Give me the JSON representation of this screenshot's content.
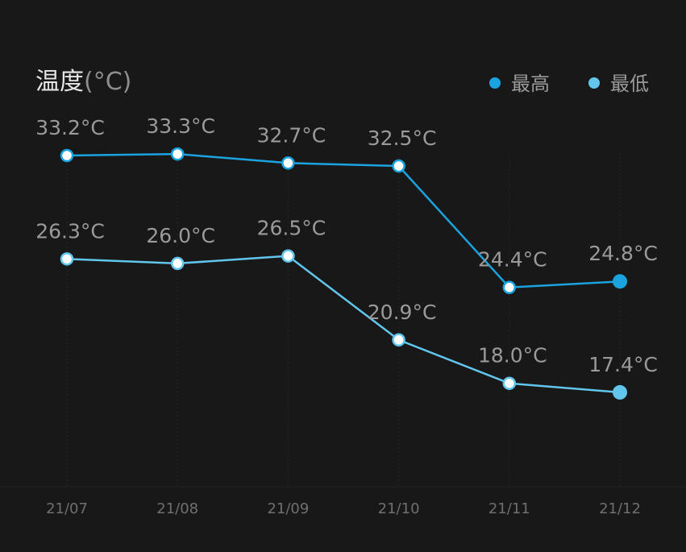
{
  "colors": {
    "background": "#181818",
    "max_series": "#1aa3df",
    "min_series": "#62c6ec",
    "text": "#9a9a9a",
    "title": "#e6e6e6"
  },
  "chart_data": {
    "type": "line",
    "title": "温度",
    "unit": "(°C)",
    "categories": [
      "21/07",
      "21/08",
      "21/09",
      "21/10",
      "21/11",
      "21/12"
    ],
    "series": [
      {
        "name": "最高",
        "values": [
          33.2,
          33.3,
          32.7,
          32.5,
          24.4,
          24.8
        ],
        "labels": [
          "33.2°C",
          "33.3°C",
          "32.7°C",
          "32.5°C",
          "24.4°C",
          "24.8°C"
        ]
      },
      {
        "name": "最低",
        "values": [
          26.3,
          26.0,
          26.5,
          20.9,
          18.0,
          17.4
        ],
        "labels": [
          "26.3°C",
          "26.0°C",
          "26.5°C",
          "20.9°C",
          "18.0°C",
          "17.4°C"
        ]
      }
    ],
    "legend_position": "top-right",
    "grid": "vertical dotted",
    "ylim": [
      10,
      40
    ]
  }
}
